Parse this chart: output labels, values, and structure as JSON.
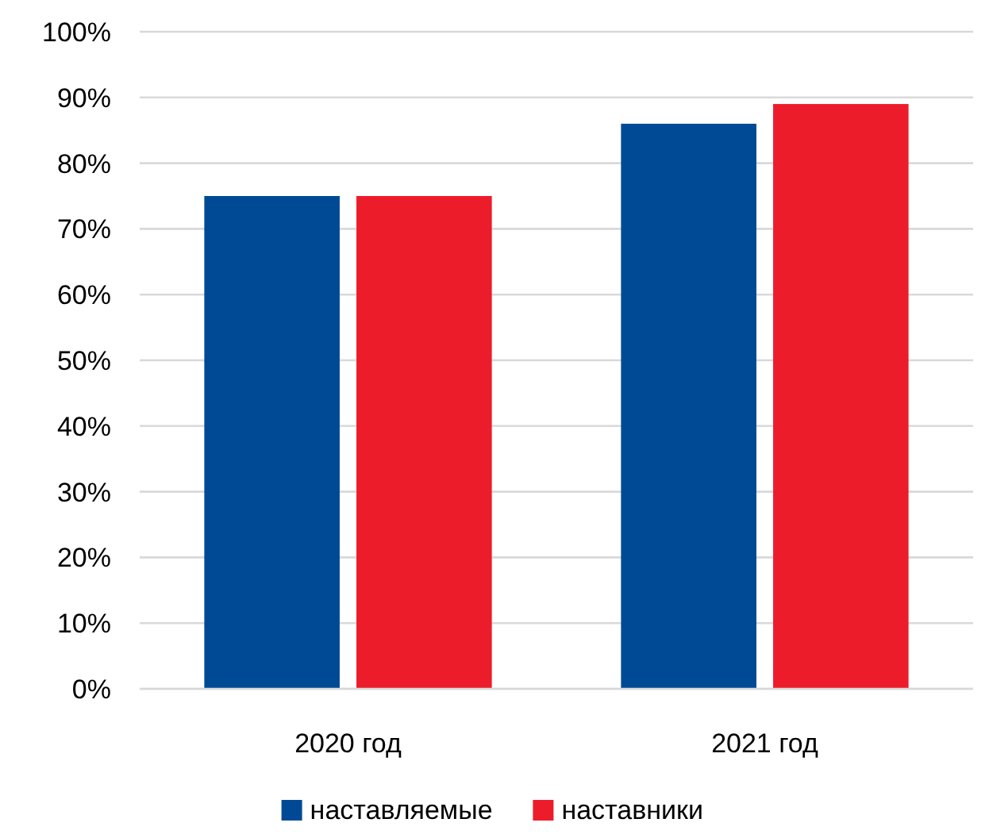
{
  "chart_data": {
    "type": "bar",
    "categories": [
      "2020 год",
      "2021 год"
    ],
    "series": [
      {
        "name": "наставляемые",
        "color": "#004a95",
        "values": [
          75,
          86
        ]
      },
      {
        "name": "наставники",
        "color": "#ed1c2a",
        "values": [
          75,
          89
        ]
      }
    ],
    "ylim": [
      0,
      100
    ],
    "yticks": [
      {
        "value": 0,
        "label": "0%"
      },
      {
        "value": 10,
        "label": "10%"
      },
      {
        "value": 20,
        "label": "20%"
      },
      {
        "value": 30,
        "label": "30%"
      },
      {
        "value": 40,
        "label": "40%"
      },
      {
        "value": 50,
        "label": "50%"
      },
      {
        "value": 60,
        "label": "60%"
      },
      {
        "value": 70,
        "label": "70%"
      },
      {
        "value": 80,
        "label": "80%"
      },
      {
        "value": 90,
        "label": "90%"
      },
      {
        "value": 100,
        "label": "100%"
      }
    ],
    "grid": "y",
    "legend": "bottom"
  }
}
